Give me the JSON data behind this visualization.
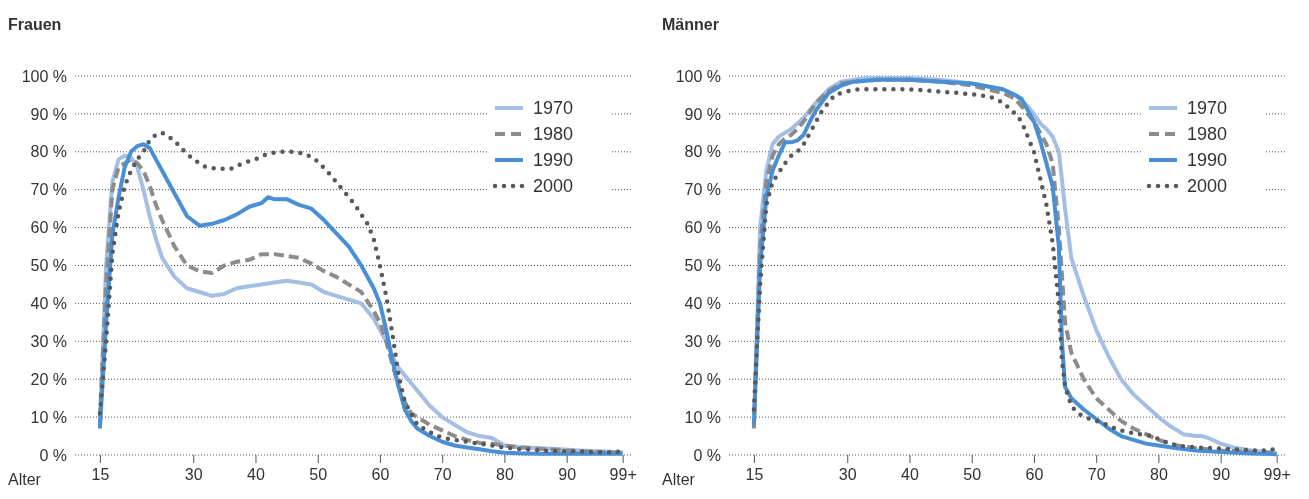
{
  "chart_data": [
    {
      "type": "line",
      "title": "Frauen",
      "xlabel": "Alter",
      "xlim": [
        11,
        100.5
      ],
      "ylim": [
        0,
        100
      ],
      "grid": "y",
      "legend": "top right",
      "xticks": [
        15,
        30,
        40,
        50,
        60,
        70,
        80,
        90,
        {
          "value": 99,
          "label": "99+"
        }
      ],
      "yticks": [
        {
          "value": 0,
          "label": "0 %"
        },
        {
          "value": 10,
          "label": "10 %"
        },
        {
          "value": 20,
          "label": "20 %"
        },
        {
          "value": 30,
          "label": "30 %"
        },
        {
          "value": 40,
          "label": "40 %"
        },
        {
          "value": 50,
          "label": "50 %"
        },
        {
          "value": 60,
          "label": "60 %"
        },
        {
          "value": 70,
          "label": "70 %"
        },
        {
          "value": 80,
          "label": "80 %"
        },
        {
          "value": 90,
          "label": "90 %"
        },
        {
          "value": 100,
          "label": "100 %"
        }
      ],
      "series": [
        {
          "name": "1970",
          "color": "#a3bfe3",
          "line_style": "solid",
          "x": [
            15,
            16,
            17,
            18,
            19,
            20,
            21,
            22,
            23,
            24,
            25,
            27,
            29,
            31,
            33,
            35,
            37,
            39,
            41,
            43,
            45,
            47,
            49,
            51,
            53,
            55,
            57,
            59,
            60,
            61,
            62,
            63,
            64,
            65,
            66,
            68,
            70,
            72,
            74,
            76,
            78,
            80,
            83,
            86,
            89,
            92,
            95,
            99
          ],
          "values": [
            7,
            50,
            72,
            78,
            79,
            78.5,
            76,
            70,
            63,
            57,
            52,
            47,
            44,
            43,
            42,
            42.5,
            44,
            44.5,
            45,
            45.5,
            46,
            45.5,
            45,
            43,
            42,
            41,
            40,
            36,
            33,
            30,
            26,
            23,
            21,
            19,
            17,
            13,
            10,
            8,
            6,
            5,
            4.5,
            2.5,
            2,
            1.8,
            1.5,
            1.2,
            1,
            0.7
          ]
        },
        {
          "name": "1980",
          "color": "#8c8c8c",
          "line_style": "dashed",
          "x": [
            15,
            16,
            17,
            18,
            19,
            20,
            21,
            22,
            23,
            24,
            25,
            27,
            29,
            31,
            33,
            35,
            37,
            39,
            41,
            43,
            45,
            47,
            49,
            51,
            53,
            55,
            57,
            59,
            60,
            61,
            62,
            63,
            64,
            65,
            66,
            68,
            70,
            72,
            74,
            76,
            78,
            80,
            83,
            86,
            89,
            92,
            95,
            99
          ],
          "values": [
            10,
            45,
            70,
            76,
            77,
            78,
            77,
            75,
            71,
            66,
            62,
            55,
            50,
            48.5,
            48,
            50,
            51,
            51.5,
            53,
            53,
            52.5,
            52,
            50.5,
            48.5,
            47,
            45,
            43,
            38,
            35,
            30,
            24,
            18,
            14,
            11,
            10,
            8,
            6.5,
            5,
            4,
            3.2,
            3,
            2.5,
            2,
            1.6,
            1.3,
            1,
            0.8,
            0.5
          ]
        },
        {
          "name": "1990",
          "color": "#4a8fd4",
          "line_style": "solid",
          "x": [
            15,
            16,
            17,
            18,
            19,
            20,
            21,
            22,
            23,
            24,
            25,
            27,
            29,
            31,
            33,
            35,
            37,
            39,
            41,
            42,
            43,
            45,
            47,
            49,
            51,
            53,
            55,
            57,
            59,
            60,
            61,
            62,
            63,
            64,
            65,
            66,
            68,
            70,
            72,
            74,
            76,
            78,
            80,
            83,
            86,
            89,
            92,
            95,
            99
          ],
          "values": [
            7,
            35,
            58,
            68,
            76,
            80,
            81.5,
            82,
            81,
            78,
            75,
            69,
            63,
            60.5,
            61,
            62,
            63.5,
            65.5,
            66.5,
            68,
            67.5,
            67.5,
            66,
            65,
            62,
            58.5,
            55,
            50,
            44,
            40,
            33,
            25,
            18,
            12,
            9,
            7,
            5,
            3.5,
            2.5,
            2,
            1.5,
            1,
            0.6,
            0.4,
            0.3,
            0.3,
            0.3,
            0.3,
            0.3
          ]
        },
        {
          "name": "2000",
          "color": "#595959",
          "line_style": "dotted",
          "x": [
            15,
            16,
            17,
            18,
            19,
            20,
            21,
            22,
            23,
            24,
            25,
            26,
            27,
            28,
            30,
            32,
            34,
            36,
            38,
            40,
            42,
            44,
            46,
            48,
            50,
            52,
            54,
            56,
            58,
            59,
            60,
            61,
            62,
            63,
            64,
            65,
            66,
            68,
            70,
            72,
            74,
            76,
            78,
            80,
            83,
            86,
            89,
            92,
            95,
            98,
            99
          ],
          "values": [
            11,
            30,
            53,
            64,
            71,
            75,
            78,
            80,
            83,
            84.5,
            85,
            84,
            83,
            81,
            78,
            76,
            75.5,
            75.5,
            77,
            78,
            79.5,
            80,
            80,
            79.5,
            77.5,
            74,
            70,
            66,
            61,
            57,
            50,
            42,
            32,
            21,
            14,
            11,
            8,
            6,
            4.5,
            4,
            3.5,
            3,
            2.5,
            2,
            1.5,
            1.2,
            1,
            1,
            0.7,
            0.7,
            1.5
          ]
        }
      ]
    },
    {
      "type": "line",
      "title": "Männer",
      "xlabel": "Alter",
      "xlim": [
        11,
        100.5
      ],
      "ylim": [
        0,
        100
      ],
      "grid": "y",
      "legend": "top right",
      "xticks": [
        15,
        30,
        40,
        50,
        60,
        70,
        80,
        90,
        {
          "value": 99,
          "label": "99+"
        }
      ],
      "yticks": [
        {
          "value": 0,
          "label": "0 %"
        },
        {
          "value": 10,
          "label": "10 %"
        },
        {
          "value": 20,
          "label": "20 %"
        },
        {
          "value": 30,
          "label": "30 %"
        },
        {
          "value": 40,
          "label": "40 %"
        },
        {
          "value": 50,
          "label": "50 %"
        },
        {
          "value": 60,
          "label": "60 %"
        },
        {
          "value": 70,
          "label": "70 %"
        },
        {
          "value": 80,
          "label": "80 %"
        },
        {
          "value": 90,
          "label": "90 %"
        },
        {
          "value": 100,
          "label": "100 %"
        }
      ],
      "series": [
        {
          "name": "1970",
          "color": "#a3bfe3",
          "line_style": "solid",
          "x": [
            15,
            16,
            17,
            18,
            19,
            20,
            21,
            22,
            23,
            24,
            25,
            27,
            29,
            31,
            33,
            35,
            40,
            45,
            50,
            55,
            57,
            59,
            60,
            61,
            62,
            63,
            64,
            65,
            66,
            67,
            68,
            70,
            72,
            74,
            76,
            78,
            80,
            82,
            84,
            86,
            87,
            88,
            90,
            92,
            95,
            99
          ],
          "values": [
            8,
            60,
            75,
            82,
            84,
            85,
            86,
            87.5,
            89,
            91,
            93,
            96.5,
            98.5,
            99,
            99.5,
            99.5,
            99.5,
            99,
            98,
            96.5,
            95,
            92,
            90,
            87.5,
            86,
            84,
            80,
            65,
            52,
            47,
            42,
            33,
            26,
            20,
            16,
            13,
            10,
            7.5,
            5.5,
            5,
            5,
            4.5,
            3,
            2,
            1.2,
            0.5
          ]
        },
        {
          "name": "1980",
          "color": "#8c8c8c",
          "line_style": "dashed",
          "x": [
            15,
            16,
            17,
            18,
            19,
            20,
            21,
            22,
            23,
            24,
            25,
            27,
            29,
            31,
            35,
            40,
            45,
            50,
            55,
            57,
            59,
            60,
            61,
            62,
            63,
            64,
            65,
            66,
            68,
            70,
            72,
            74,
            76,
            78,
            80,
            83,
            86,
            90,
            95,
            99
          ],
          "values": [
            7,
            55,
            72,
            79,
            82,
            83.5,
            84.5,
            86,
            88,
            90.5,
            93,
            96,
            98,
            98.5,
            99,
            99,
            98.5,
            97.5,
            95.5,
            94,
            90,
            88,
            85,
            82,
            77,
            60,
            35,
            27,
            20,
            15,
            12,
            9,
            7,
            5.5,
            4,
            2.5,
            1.8,
            1.2,
            0.8,
            0.5
          ]
        },
        {
          "name": "1990",
          "color": "#4a8fd4",
          "line_style": "solid",
          "x": [
            15,
            16,
            17,
            18,
            19,
            20,
            21,
            22,
            23,
            24,
            25,
            27,
            29,
            31,
            35,
            40,
            45,
            50,
            55,
            57,
            58,
            59,
            60,
            61,
            62,
            63,
            64,
            64.5,
            65,
            66,
            68,
            70,
            72,
            74,
            76,
            78,
            80,
            83,
            86,
            90,
            95,
            99
          ],
          "values": [
            8,
            50,
            68,
            75,
            79,
            82.5,
            82.5,
            83,
            84.5,
            88,
            91,
            95.5,
            97.5,
            98.5,
            99,
            99,
            98.5,
            98,
            96.5,
            95,
            94,
            91,
            88,
            83,
            77,
            71,
            55,
            30,
            18,
            15,
            12,
            9.5,
            7,
            5,
            4,
            3,
            2.5,
            1.8,
            1.2,
            0.8,
            0.4,
            0.2
          ]
        },
        {
          "name": "2000",
          "color": "#595959",
          "line_style": "dotted",
          "x": [
            15,
            16,
            17,
            18,
            19,
            20,
            21,
            22,
            23,
            24,
            25,
            26,
            27,
            28,
            30,
            32,
            35,
            38,
            40,
            44,
            48,
            51,
            53,
            55,
            57,
            58,
            59,
            60,
            61,
            62,
            63,
            64,
            64.5,
            65,
            66,
            67,
            69,
            71,
            73,
            75,
            77,
            79,
            81,
            83,
            86,
            89,
            92,
            95,
            98,
            99
          ],
          "values": [
            12,
            45,
            66,
            72,
            74.5,
            77,
            79,
            80,
            82,
            85,
            88,
            91,
            93,
            95,
            96,
            96.5,
            96.5,
            96.5,
            96.5,
            96,
            95.5,
            95,
            94.5,
            93,
            90,
            88,
            84,
            80,
            73,
            66,
            56,
            40,
            25,
            18,
            13,
            11,
            9.5,
            8.5,
            7,
            6,
            5.5,
            5,
            3.5,
            2.5,
            2,
            1.8,
            1.5,
            1.2,
            1.2,
            2
          ]
        }
      ]
    }
  ]
}
